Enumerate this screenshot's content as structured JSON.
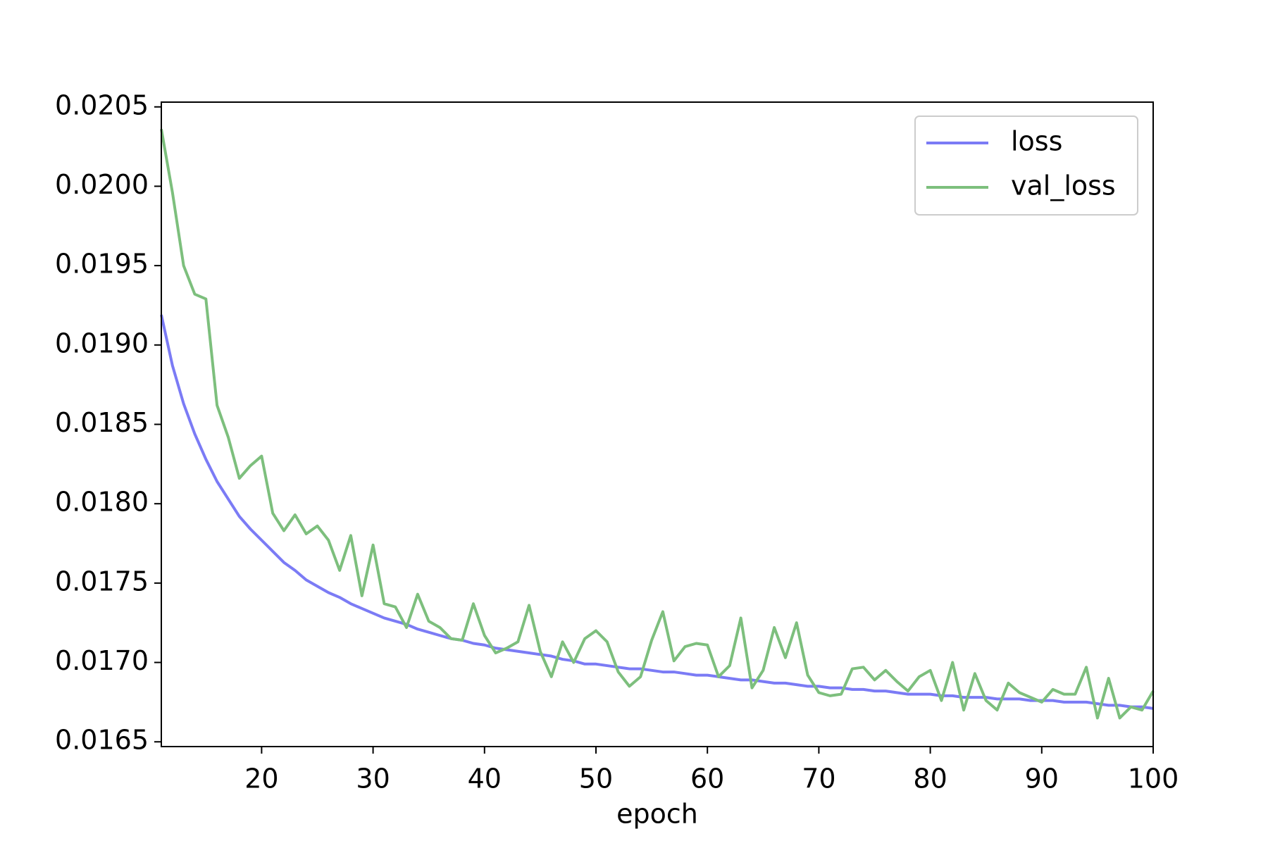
{
  "chart_data": {
    "type": "line",
    "x_label": "epoch",
    "x": [
      11,
      12,
      13,
      14,
      15,
      16,
      17,
      18,
      19,
      20,
      21,
      22,
      23,
      24,
      25,
      26,
      27,
      28,
      29,
      30,
      31,
      32,
      33,
      34,
      35,
      36,
      37,
      38,
      39,
      40,
      41,
      42,
      43,
      44,
      45,
      46,
      47,
      48,
      49,
      50,
      51,
      52,
      53,
      54,
      55,
      56,
      57,
      58,
      59,
      60,
      61,
      62,
      63,
      64,
      65,
      66,
      67,
      68,
      69,
      70,
      71,
      72,
      73,
      74,
      75,
      76,
      77,
      78,
      79,
      80,
      81,
      82,
      83,
      84,
      85,
      86,
      87,
      88,
      89,
      90,
      91,
      92,
      93,
      94,
      95,
      96,
      97,
      98,
      99,
      100
    ],
    "series": [
      {
        "name": "loss",
        "color": "#7b7bf5",
        "values": [
          0.01919,
          0.01887,
          0.01863,
          0.01844,
          0.01828,
          0.01814,
          0.01803,
          0.01792,
          0.01784,
          0.01777,
          0.0177,
          0.01763,
          0.01758,
          0.01752,
          0.01748,
          0.01744,
          0.01741,
          0.01737,
          0.01734,
          0.01731,
          0.01728,
          0.01726,
          0.01724,
          0.01721,
          0.01719,
          0.01717,
          0.01715,
          0.01714,
          0.01712,
          0.01711,
          0.01709,
          0.01708,
          0.01707,
          0.01706,
          0.01705,
          0.01704,
          0.01702,
          0.01701,
          0.01699,
          0.01699,
          0.01698,
          0.01697,
          0.01696,
          0.01696,
          0.01695,
          0.01694,
          0.01694,
          0.01693,
          0.01692,
          0.01692,
          0.01691,
          0.0169,
          0.01689,
          0.01689,
          0.01688,
          0.01687,
          0.01687,
          0.01686,
          0.01685,
          0.01685,
          0.01684,
          0.01684,
          0.01683,
          0.01683,
          0.01682,
          0.01682,
          0.01681,
          0.0168,
          0.0168,
          0.0168,
          0.01679,
          0.01679,
          0.01678,
          0.01678,
          0.01678,
          0.01677,
          0.01677,
          0.01677,
          0.01676,
          0.01676,
          0.01676,
          0.01675,
          0.01675,
          0.01675,
          0.01674,
          0.01673,
          0.01673,
          0.01672,
          0.01672,
          0.01671
        ]
      },
      {
        "name": "val_loss",
        "color": "#7dbf7d",
        "values": [
          0.02036,
          0.01996,
          0.0195,
          0.01932,
          0.01929,
          0.01862,
          0.01842,
          0.01816,
          0.01824,
          0.0183,
          0.01794,
          0.01783,
          0.01793,
          0.01781,
          0.01786,
          0.01777,
          0.01758,
          0.0178,
          0.01742,
          0.01774,
          0.01737,
          0.01735,
          0.01722,
          0.01743,
          0.01726,
          0.01722,
          0.01715,
          0.01714,
          0.01737,
          0.01717,
          0.01706,
          0.01709,
          0.01713,
          0.01736,
          0.01707,
          0.01691,
          0.01713,
          0.017,
          0.01715,
          0.0172,
          0.01713,
          0.01694,
          0.01685,
          0.01691,
          0.01714,
          0.01732,
          0.01701,
          0.0171,
          0.01712,
          0.01711,
          0.01691,
          0.01698,
          0.01728,
          0.01684,
          0.01695,
          0.01722,
          0.01703,
          0.01725,
          0.01692,
          0.01681,
          0.01679,
          0.0168,
          0.01696,
          0.01697,
          0.01689,
          0.01695,
          0.01688,
          0.01682,
          0.01691,
          0.01695,
          0.01676,
          0.017,
          0.0167,
          0.01693,
          0.01676,
          0.0167,
          0.01687,
          0.01681,
          0.01678,
          0.01675,
          0.01683,
          0.0168,
          0.0168,
          0.01697,
          0.01665,
          0.0169,
          0.01665,
          0.01672,
          0.0167,
          0.01682
        ]
      }
    ],
    "xlim": [
      11,
      100
    ],
    "xticks": [
      20,
      30,
      40,
      50,
      60,
      70,
      80,
      90,
      100
    ],
    "ylim": [
      0.01647,
      0.02053
    ],
    "yticks": [
      0.0165,
      {
        "value": 0.017,
        "label": "0.0170"
      },
      0.0175,
      {
        "value": 0.018,
        "label": "0.0180"
      },
      0.0185,
      {
        "value": 0.019,
        "label": "0.0190"
      },
      0.0195,
      {
        "value": 0.02,
        "label": "0.0200"
      },
      0.0205
    ],
    "legend": "upper right"
  }
}
